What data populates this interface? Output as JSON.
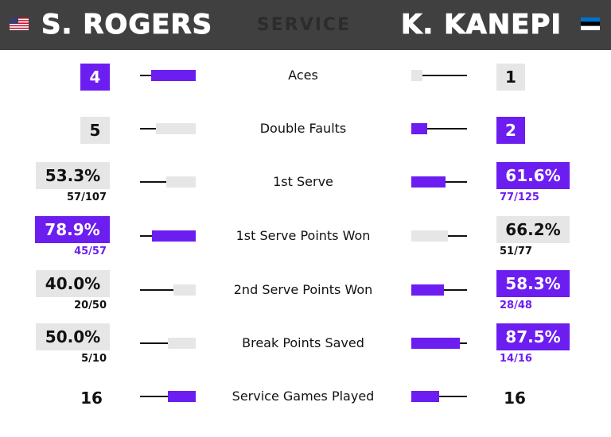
{
  "header": {
    "left_name": "S. ROGERS",
    "right_name": "K. KANEPI",
    "section_title": "SERVICE",
    "left_flag_icon": "usa-flag-icon",
    "right_flag_icon": "estonia-flag-icon"
  },
  "colors": {
    "header_bg": "#404040",
    "winner": "#6c1ef0",
    "neutral": "#e6e6e6",
    "text": "#111111"
  },
  "rows": [
    {
      "label": "Aces",
      "left": {
        "value": "4",
        "sub": "",
        "state": "win",
        "bar": 0.8
      },
      "right": {
        "value": "1",
        "sub": "",
        "state": "lose",
        "bar": 0.2
      }
    },
    {
      "label": "Double Faults",
      "left": {
        "value": "5",
        "sub": "",
        "state": "lose",
        "bar": 0.71
      },
      "right": {
        "value": "2",
        "sub": "",
        "state": "win",
        "bar": 0.29
      }
    },
    {
      "label": "1st Serve",
      "left": {
        "value": "53.3%",
        "sub": "57/107",
        "state": "lose",
        "bar": 0.533
      },
      "right": {
        "value": "61.6%",
        "sub": "77/125",
        "state": "win",
        "bar": 0.616
      }
    },
    {
      "label": "1st Serve Points Won",
      "left": {
        "value": "78.9%",
        "sub": "45/57",
        "state": "win",
        "bar": 0.789
      },
      "right": {
        "value": "66.2%",
        "sub": "51/77",
        "state": "lose",
        "bar": 0.662
      }
    },
    {
      "label": "2nd Serve Points Won",
      "left": {
        "value": "40.0%",
        "sub": "20/50",
        "state": "lose",
        "bar": 0.4
      },
      "right": {
        "value": "58.3%",
        "sub": "28/48",
        "state": "win",
        "bar": 0.583
      }
    },
    {
      "label": "Break Points Saved",
      "left": {
        "value": "50.0%",
        "sub": "5/10",
        "state": "lose",
        "bar": 0.5
      },
      "right": {
        "value": "87.5%",
        "sub": "14/16",
        "state": "win",
        "bar": 0.875
      }
    },
    {
      "label": "Service Games Played",
      "left": {
        "value": "16",
        "sub": "",
        "state": "plain",
        "bar": 0.5
      },
      "right": {
        "value": "16",
        "sub": "",
        "state": "plain",
        "bar": 0.5
      }
    }
  ]
}
